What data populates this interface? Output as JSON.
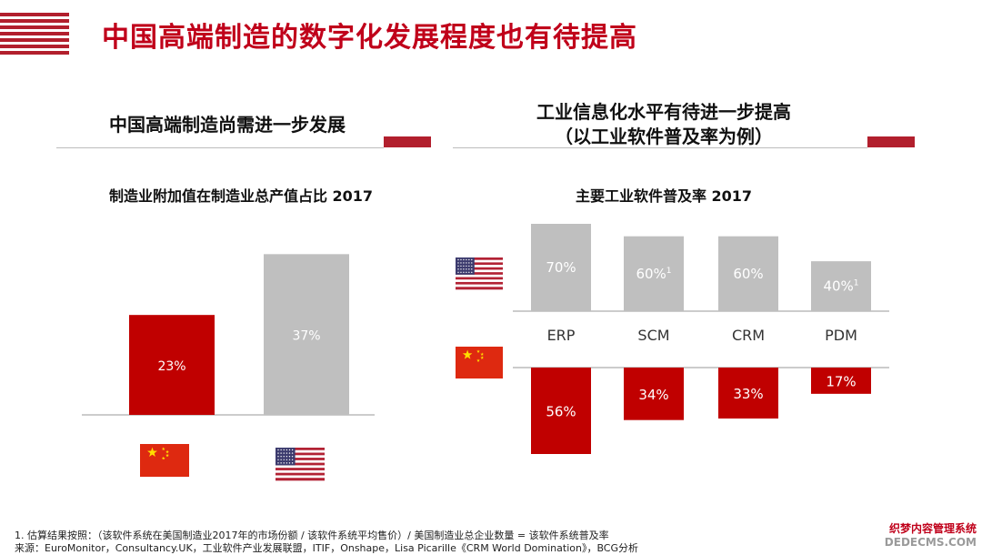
{
  "header": {
    "title": "中国高端制造的数字化发展程度也有待提高"
  },
  "left": {
    "section_title": "中国高端制造尚需进一步发展",
    "chart_title": "制造业附加值在制造业总产值占比 2017"
  },
  "right": {
    "section_title_line1": "工业信息化水平有待进一步提高",
    "section_title_line2": "（以工业软件普及率为例）",
    "chart_title": "主要工业软件普及率 2017"
  },
  "chart_data": [
    {
      "type": "bar",
      "categories": [
        "China",
        "USA"
      ],
      "values": [
        23,
        37
      ],
      "labels": [
        "23%",
        "37%"
      ],
      "icons": [
        "china-flag-icon",
        "us-flag-icon"
      ],
      "colors": {
        "China": "#c00000",
        "USA": "#bfbfbf"
      },
      "ylim": [
        0,
        40
      ]
    },
    {
      "type": "bar",
      "categories": [
        "ERP",
        "SCM",
        "CRM",
        "PDM"
      ],
      "series": [
        {
          "name": "USA",
          "values": [
            70,
            60,
            60,
            40
          ],
          "labels": [
            "70%",
            "60%",
            "60%",
            "40%"
          ],
          "notes": [
            "",
            "1",
            "",
            "1"
          ],
          "color": "#bfbfbf",
          "icon": "us-flag-icon"
        },
        {
          "name": "China",
          "values": [
            56,
            34,
            33,
            17
          ],
          "labels": [
            "56%",
            "34%",
            "33%",
            "17%"
          ],
          "color": "#c00000",
          "icon": "china-flag-icon"
        }
      ]
    }
  ],
  "footnotes": {
    "note1": "1. 估算结果按照：（该软件系统在美国制造业2017年的市场份额 / 该软件系统平均售价）/ 美国制造业总企业数量 = 该软件系统普及率",
    "source": "来源：EuroMonitor，Consultancy.UK，工业软件产业发展联盟，ITIF，Onshape，Lisa Picarille《CRM World Domination》，BCG分析"
  },
  "watermark": {
    "line1": "织梦内容管理系统",
    "line2": "DEDECMS.COM"
  }
}
